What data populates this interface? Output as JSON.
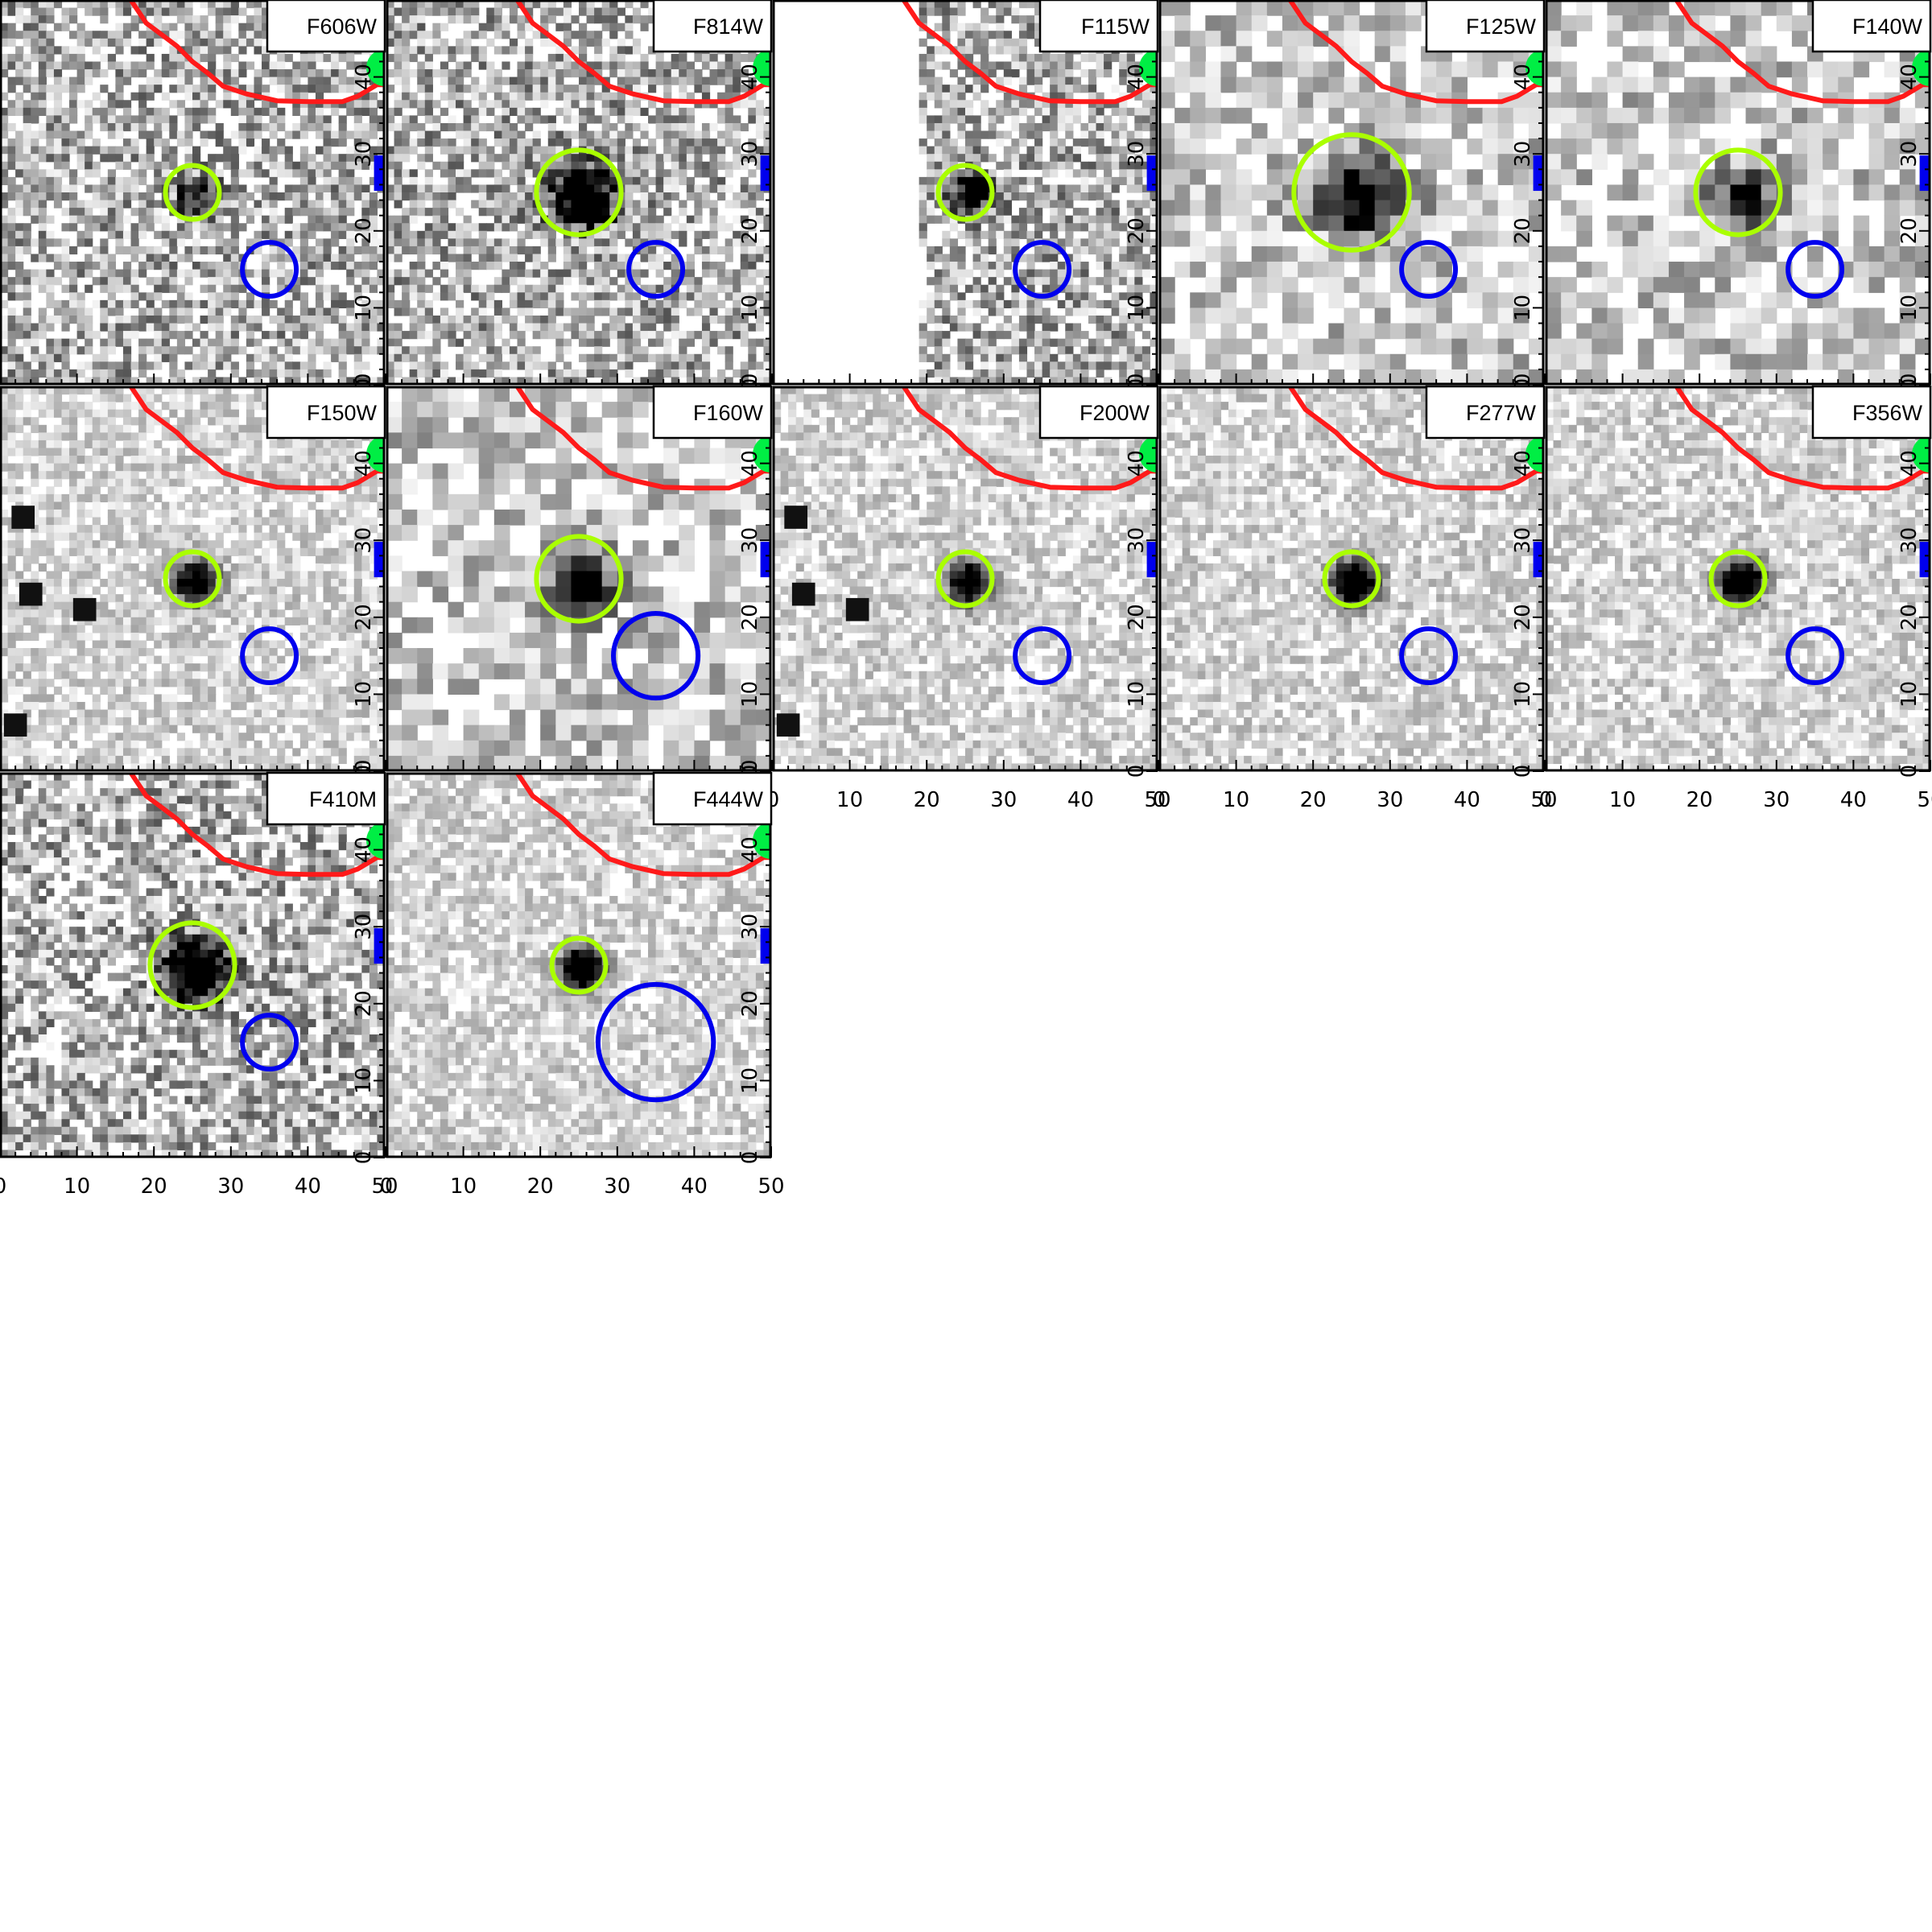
{
  "figure": {
    "axis_ticks": [
      "0",
      "10",
      "20",
      "30",
      "40",
      "50"
    ],
    "colors": {
      "source_aperture": "#aaff00",
      "neighbor_aperture": "#0000ee",
      "mask_region": "#ff1a1a",
      "edge_object": "#00ee44"
    },
    "panels": [
      {
        "id": "f606w",
        "label": "F606W",
        "style": "noisy",
        "source_radius": 3.5,
        "source_depth": 0.55,
        "blue_radius": 3.5,
        "blank": false
      },
      {
        "id": "f814w",
        "label": "F814W",
        "style": "noisy",
        "source_radius": 5.5,
        "source_depth": 0.85,
        "blue_radius": 3.5,
        "blank": false
      },
      {
        "id": "f115w",
        "label": "F115W",
        "style": "noisy",
        "source_radius": 3.5,
        "source_depth": 0.75,
        "blue_radius": 3.5,
        "blank": true
      },
      {
        "id": "f125w",
        "label": "F125W",
        "style": "smooth",
        "source_radius": 7.5,
        "source_depth": 0.55,
        "blue_radius": 3.5,
        "blank": false
      },
      {
        "id": "f140w",
        "label": "F140W",
        "style": "smooth",
        "source_radius": 5.5,
        "source_depth": 0.55,
        "blue_radius": 3.5,
        "blank": false
      },
      {
        "id": "f150w",
        "label": "F150W",
        "style": "clean",
        "source_radius": 3.5,
        "source_depth": 0.8,
        "blue_radius": 3.5,
        "blank": false
      },
      {
        "id": "f160w",
        "label": "F160W",
        "style": "smooth",
        "source_radius": 5.5,
        "source_depth": 0.6,
        "blue_radius": 5.5,
        "blank": false
      },
      {
        "id": "f200w",
        "label": "F200W",
        "style": "clean",
        "source_radius": 3.5,
        "source_depth": 0.8,
        "blue_radius": 3.5,
        "blank": false
      },
      {
        "id": "f277w",
        "label": "F277W",
        "style": "clean",
        "source_radius": 3.5,
        "source_depth": 1.0,
        "blue_radius": 3.5,
        "blank": false
      },
      {
        "id": "f356w",
        "label": "F356W",
        "style": "clean",
        "source_radius": 3.5,
        "source_depth": 1.0,
        "blue_radius": 3.5,
        "blank": false
      },
      {
        "id": "f410m",
        "label": "F410M",
        "style": "noisy",
        "source_radius": 5.5,
        "source_depth": 0.9,
        "blue_radius": 3.5,
        "blank": false
      },
      {
        "id": "f444w",
        "label": "F444W",
        "style": "clean",
        "source_radius": 3.5,
        "source_depth": 1.0,
        "blue_radius": 7.5,
        "blank": false
      }
    ]
  }
}
